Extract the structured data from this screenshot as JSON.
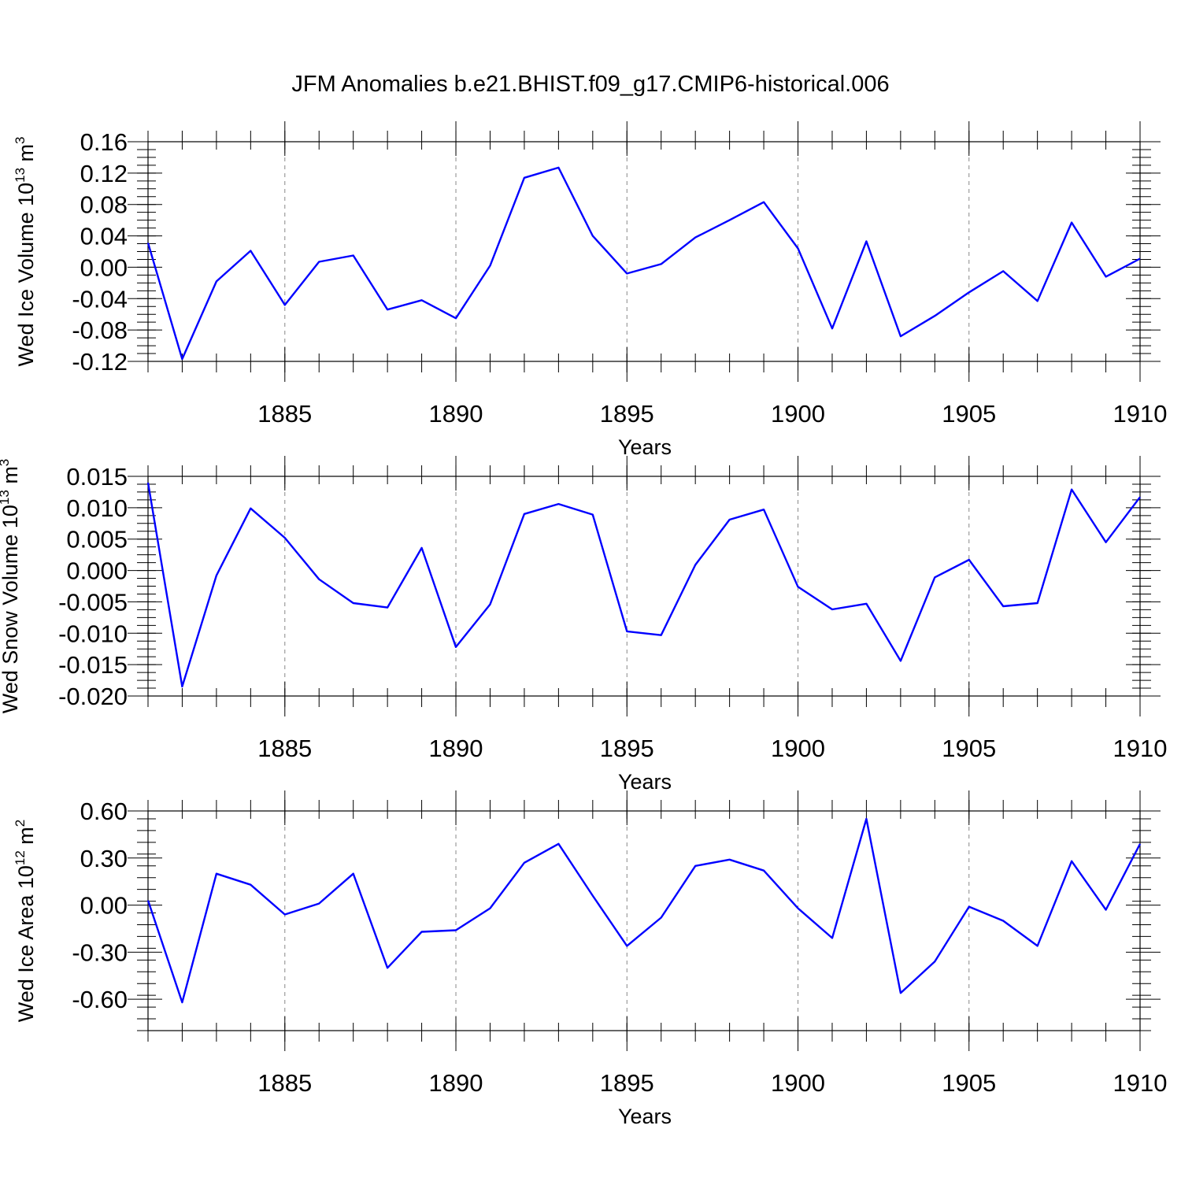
{
  "title": "JFM Anomalies b.e21.BHIST.f09_g17.CMIP6-historical.006",
  "colors": {
    "line": "#0000ff",
    "axis": "#000000",
    "grid": "#888888",
    "background": "#ffffff"
  },
  "chart_data": [
    {
      "type": "line",
      "xlabel": "Years",
      "ylabel": "Wed Ice Volume 10",
      "ylabel_exp": "13",
      "ylabel_unit": " m",
      "ylabel_unit_exp": "3",
      "xlim": [
        1881,
        1910
      ],
      "ylim": [
        -0.12,
        0.16
      ],
      "xticks": [
        "1885",
        "1890",
        "1895",
        "1900",
        "1905",
        "1910"
      ],
      "yticks": [
        "-0.12",
        "-0.08",
        "-0.04",
        "0.00",
        "0.04",
        "0.08",
        "0.12",
        "0.16"
      ],
      "grid": "vertical dashed at major x ticks",
      "x": [
        1881,
        1882,
        1883,
        1884,
        1885,
        1886,
        1887,
        1888,
        1889,
        1890,
        1891,
        1892,
        1893,
        1894,
        1895,
        1896,
        1897,
        1898,
        1899,
        1900,
        1901,
        1902,
        1903,
        1904,
        1905,
        1906,
        1907,
        1908,
        1909,
        1910
      ],
      "values": [
        0.031,
        -0.117,
        -0.018,
        0.021,
        -0.048,
        0.007,
        0.015,
        -0.054,
        -0.042,
        -0.065,
        0.002,
        0.114,
        0.127,
        0.04,
        -0.008,
        0.004,
        0.038,
        0.06,
        0.083,
        0.024,
        -0.078,
        0.033,
        -0.088,
        -0.062,
        -0.032,
        -0.005,
        -0.043,
        0.057,
        -0.012,
        0.011
      ]
    },
    {
      "type": "line",
      "xlabel": "Years",
      "ylabel": "Wed Snow Volume 10",
      "ylabel_exp": "13",
      "ylabel_unit": " m",
      "ylabel_unit_exp": "3",
      "xlim": [
        1881,
        1910
      ],
      "ylim": [
        -0.02,
        0.015
      ],
      "xticks": [
        "1885",
        "1890",
        "1895",
        "1900",
        "1905",
        "1910"
      ],
      "yticks": [
        "-0.020",
        "-0.015",
        "-0.010",
        "-0.005",
        "0.000",
        "0.005",
        "0.010",
        "0.015"
      ],
      "grid": "vertical dashed at major x ticks",
      "x": [
        1881,
        1882,
        1883,
        1884,
        1885,
        1886,
        1887,
        1888,
        1889,
        1890,
        1891,
        1892,
        1893,
        1894,
        1895,
        1896,
        1897,
        1898,
        1899,
        1900,
        1901,
        1902,
        1903,
        1904,
        1905,
        1906,
        1907,
        1908,
        1909,
        1910
      ],
      "values": [
        0.014,
        -0.0185,
        -0.0008,
        0.0099,
        0.0052,
        -0.0014,
        -0.0052,
        -0.0059,
        0.0036,
        -0.0122,
        -0.0054,
        0.009,
        0.0106,
        0.0089,
        -0.0097,
        -0.0103,
        0.0009,
        0.0081,
        0.0097,
        -0.0026,
        -0.0062,
        -0.0053,
        -0.0144,
        -0.0011,
        0.0017,
        -0.0057,
        -0.0052,
        0.0129,
        0.0045,
        0.0117
      ]
    },
    {
      "type": "line",
      "xlabel": "Years",
      "ylabel": "Wed Ice Area 10",
      "ylabel_exp": "12",
      "ylabel_unit": " m",
      "ylabel_unit_exp": "2",
      "xlim": [
        1881,
        1910
      ],
      "ylim": [
        -0.8,
        0.6
      ],
      "xticks": [
        "1885",
        "1890",
        "1895",
        "1900",
        "1905",
        "1910"
      ],
      "yticks": [
        "-0.60",
        "-0.30",
        "0.00",
        "0.30",
        "0.60"
      ],
      "grid": "vertical dashed at major x ticks",
      "x": [
        1881,
        1882,
        1883,
        1884,
        1885,
        1886,
        1887,
        1888,
        1889,
        1890,
        1891,
        1892,
        1893,
        1894,
        1895,
        1896,
        1897,
        1898,
        1899,
        1900,
        1901,
        1902,
        1903,
        1904,
        1905,
        1906,
        1907,
        1908,
        1909,
        1910
      ],
      "values": [
        0.03,
        -0.62,
        0.2,
        0.13,
        -0.06,
        0.01,
        0.2,
        -0.4,
        -0.17,
        -0.16,
        -0.02,
        0.27,
        0.39,
        0.06,
        -0.26,
        -0.08,
        0.25,
        0.29,
        0.22,
        -0.02,
        -0.21,
        0.55,
        -0.56,
        -0.36,
        -0.01,
        -0.1,
        -0.26,
        0.28,
        -0.03,
        0.39
      ]
    }
  ]
}
